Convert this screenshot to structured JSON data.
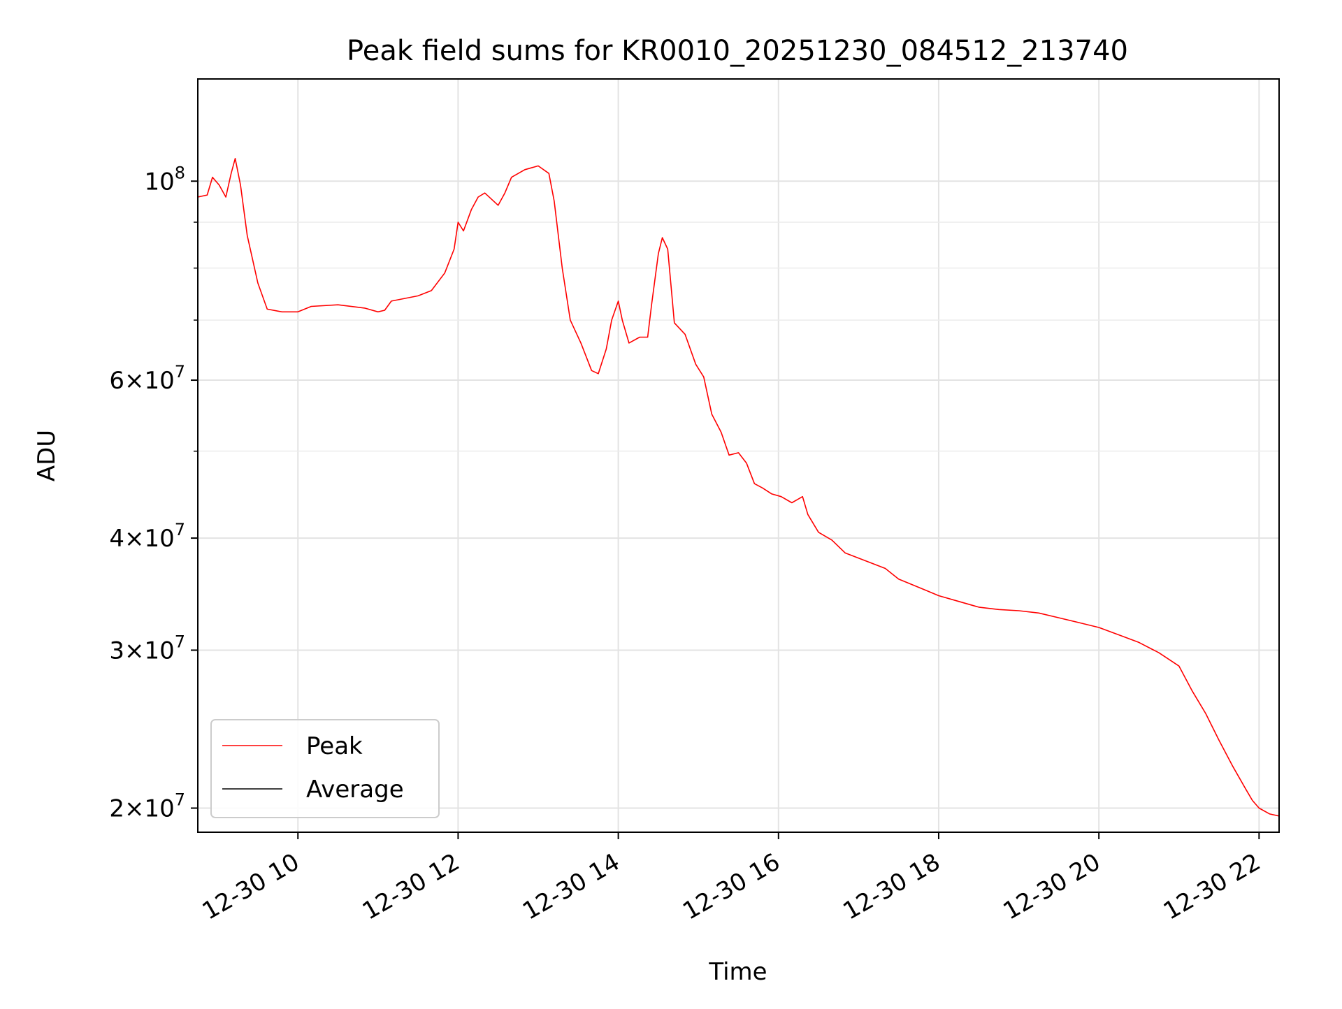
{
  "chart_data": {
    "type": "line",
    "title": "Peak field sums for KR0010_20251230_084512_213740",
    "xlabel": "Time",
    "ylabel": "ADU",
    "xscale": "time",
    "yscale": "log",
    "xlim": [
      "2025-12-30 08:45",
      "2025-12-30 22:15"
    ],
    "ylim": [
      18800000,
      130000000
    ],
    "x_ticks": [
      {
        "value": "2025-12-30 10:00",
        "label": "12-30 10"
      },
      {
        "value": "2025-12-30 12:00",
        "label": "12-30 12"
      },
      {
        "value": "2025-12-30 14:00",
        "label": "12-30 14"
      },
      {
        "value": "2025-12-30 16:00",
        "label": "12-30 16"
      },
      {
        "value": "2025-12-30 18:00",
        "label": "12-30 18"
      },
      {
        "value": "2025-12-30 20:00",
        "label": "12-30 20"
      },
      {
        "value": "2025-12-30 22:00",
        "label": "12-30 22"
      }
    ],
    "y_major_ticks": [
      {
        "value": 100000000,
        "base": "10",
        "exp": "8"
      },
      {
        "value": 60000000,
        "base": "6×10",
        "exp": "7"
      },
      {
        "value": 40000000,
        "base": "4×10",
        "exp": "7"
      },
      {
        "value": 30000000,
        "base": "3×10",
        "exp": "7"
      },
      {
        "value": 20000000,
        "base": "2×10",
        "exp": "7"
      }
    ],
    "y_minor_ticks": [
      90000000,
      80000000,
      70000000,
      50000000
    ],
    "grid": true,
    "legend_position": "lower-left",
    "series": [
      {
        "name": "Peak",
        "color": "#ff0000",
        "points": [
          [
            "2025-12-30 08:45",
            96000000
          ],
          [
            "2025-12-30 08:52",
            96500000
          ],
          [
            "2025-12-30 08:56",
            101000000
          ],
          [
            "2025-12-30 09:01",
            99000000
          ],
          [
            "2025-12-30 09:06",
            96000000
          ],
          [
            "2025-12-30 09:10",
            102000000
          ],
          [
            "2025-12-30 09:13",
            106000000
          ],
          [
            "2025-12-30 09:17",
            99000000
          ],
          [
            "2025-12-30 09:22",
            87000000
          ],
          [
            "2025-12-30 09:30",
            77000000
          ],
          [
            "2025-12-30 09:37",
            72000000
          ],
          [
            "2025-12-30 09:48",
            71500000
          ],
          [
            "2025-12-30 10:00",
            71500000
          ],
          [
            "2025-12-30 10:10",
            72500000
          ],
          [
            "2025-12-30 10:30",
            72800000
          ],
          [
            "2025-12-30 10:50",
            72200000
          ],
          [
            "2025-12-30 11:00",
            71500000
          ],
          [
            "2025-12-30 11:05",
            71800000
          ],
          [
            "2025-12-30 11:10",
            73500000
          ],
          [
            "2025-12-30 11:30",
            74500000
          ],
          [
            "2025-12-30 11:40",
            75500000
          ],
          [
            "2025-12-30 11:50",
            79000000
          ],
          [
            "2025-12-30 11:57",
            84000000
          ],
          [
            "2025-12-30 12:00",
            90000000
          ],
          [
            "2025-12-30 12:04",
            88000000
          ],
          [
            "2025-12-30 12:10",
            93000000
          ],
          [
            "2025-12-30 12:15",
            96000000
          ],
          [
            "2025-12-30 12:20",
            97000000
          ],
          [
            "2025-12-30 12:30",
            94000000
          ],
          [
            "2025-12-30 12:35",
            97000000
          ],
          [
            "2025-12-30 12:40",
            101000000
          ],
          [
            "2025-12-30 12:50",
            103000000
          ],
          [
            "2025-12-30 13:00",
            104000000
          ],
          [
            "2025-12-30 13:08",
            102000000
          ],
          [
            "2025-12-30 13:12",
            95000000
          ],
          [
            "2025-12-30 13:18",
            80000000
          ],
          [
            "2025-12-30 13:24",
            70000000
          ],
          [
            "2025-12-30 13:32",
            66000000
          ],
          [
            "2025-12-30 13:40",
            61500000
          ],
          [
            "2025-12-30 13:45",
            61000000
          ],
          [
            "2025-12-30 13:51",
            65000000
          ],
          [
            "2025-12-30 13:55",
            70000000
          ],
          [
            "2025-12-30 14:00",
            73500000
          ],
          [
            "2025-12-30 14:03",
            70000000
          ],
          [
            "2025-12-30 14:08",
            66000000
          ],
          [
            "2025-12-30 14:16",
            67000000
          ],
          [
            "2025-12-30 14:22",
            67000000
          ],
          [
            "2025-12-30 14:25",
            73000000
          ],
          [
            "2025-12-30 14:30",
            83000000
          ],
          [
            "2025-12-30 14:33",
            86500000
          ],
          [
            "2025-12-30 14:37",
            84000000
          ],
          [
            "2025-12-30 14:40",
            75000000
          ],
          [
            "2025-12-30 14:42",
            69500000
          ],
          [
            "2025-12-30 14:50",
            67500000
          ],
          [
            "2025-12-30 14:58",
            62500000
          ],
          [
            "2025-12-30 15:04",
            60500000
          ],
          [
            "2025-12-30 15:10",
            55000000
          ],
          [
            "2025-12-30 15:17",
            52500000
          ],
          [
            "2025-12-30 15:23",
            49500000
          ],
          [
            "2025-12-30 15:30",
            49800000
          ],
          [
            "2025-12-30 15:36",
            48500000
          ],
          [
            "2025-12-30 15:42",
            46000000
          ],
          [
            "2025-12-30 15:48",
            45500000
          ],
          [
            "2025-12-30 15:55",
            44800000
          ],
          [
            "2025-12-30 16:02",
            44500000
          ],
          [
            "2025-12-30 16:10",
            43800000
          ],
          [
            "2025-12-30 16:18",
            44500000
          ],
          [
            "2025-12-30 16:22",
            42500000
          ],
          [
            "2025-12-30 16:30",
            40600000
          ],
          [
            "2025-12-30 16:40",
            39800000
          ],
          [
            "2025-12-30 16:50",
            38500000
          ],
          [
            "2025-12-30 17:00",
            38000000
          ],
          [
            "2025-12-30 17:10",
            37500000
          ],
          [
            "2025-12-30 17:20",
            37000000
          ],
          [
            "2025-12-30 17:30",
            36000000
          ],
          [
            "2025-12-30 17:40",
            35500000
          ],
          [
            "2025-12-30 17:50",
            35000000
          ],
          [
            "2025-12-30 18:00",
            34500000
          ],
          [
            "2025-12-30 18:15",
            34000000
          ],
          [
            "2025-12-30 18:30",
            33500000
          ],
          [
            "2025-12-30 18:45",
            33300000
          ],
          [
            "2025-12-30 19:00",
            33200000
          ],
          [
            "2025-12-30 19:15",
            33000000
          ],
          [
            "2025-12-30 19:30",
            32600000
          ],
          [
            "2025-12-30 19:45",
            32200000
          ],
          [
            "2025-12-30 20:00",
            31800000
          ],
          [
            "2025-12-30 20:15",
            31200000
          ],
          [
            "2025-12-30 20:30",
            30600000
          ],
          [
            "2025-12-30 20:45",
            29800000
          ],
          [
            "2025-12-30 21:00",
            28800000
          ],
          [
            "2025-12-30 21:10",
            27000000
          ],
          [
            "2025-12-30 21:20",
            25500000
          ],
          [
            "2025-12-30 21:30",
            23800000
          ],
          [
            "2025-12-30 21:40",
            22300000
          ],
          [
            "2025-12-30 21:50",
            21000000
          ],
          [
            "2025-12-30 21:55",
            20400000
          ],
          [
            "2025-12-30 22:00",
            20000000
          ],
          [
            "2025-12-30 22:08",
            19700000
          ],
          [
            "2025-12-30 22:15",
            19600000
          ]
        ],
        "spikes": []
      },
      {
        "name": "Average",
        "color": "#000000",
        "points": [],
        "spikes": []
      }
    ]
  }
}
